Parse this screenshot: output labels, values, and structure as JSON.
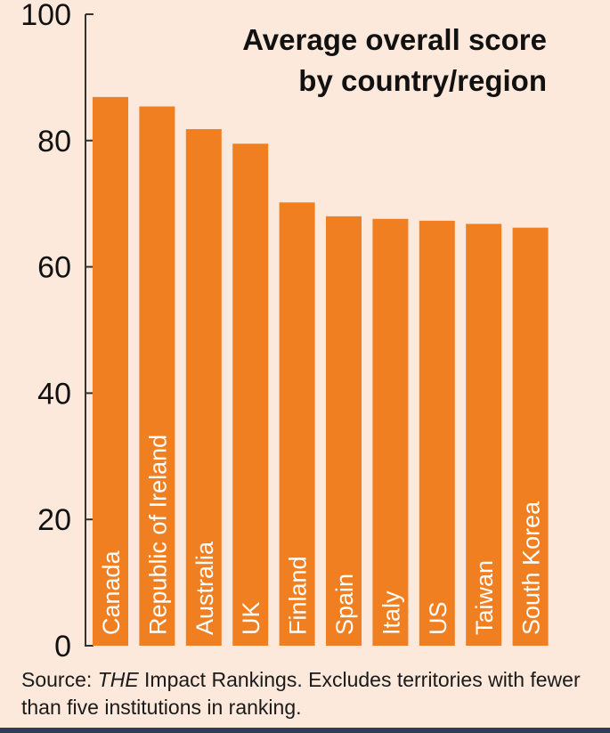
{
  "chart_data": {
    "type": "bar",
    "title": [
      "Average overall score",
      "by country/region"
    ],
    "categories": [
      "Canada",
      "Republic of Ireland",
      "Australia",
      "UK",
      "Finland",
      "Spain",
      "Italy",
      "US",
      "Taiwan",
      "South Korea"
    ],
    "values": [
      86.9,
      85.4,
      81.8,
      79.5,
      70.2,
      68.0,
      67.6,
      67.3,
      66.8,
      66.2
    ],
    "ylim": [
      0,
      100
    ],
    "yticks": [
      0,
      20,
      40,
      60,
      80,
      100
    ],
    "bar_color": "#f07f22",
    "grid": false,
    "xlabel": "",
    "ylabel": ""
  },
  "source": {
    "prefix": "Source: ",
    "publication": "THE",
    "rest": " Impact Rankings. Excludes territories with fewer than five institutions in ranking."
  },
  "colors": {
    "background": "#fce9db",
    "axis": "#333333",
    "footer_rule": "#2f3e55"
  }
}
